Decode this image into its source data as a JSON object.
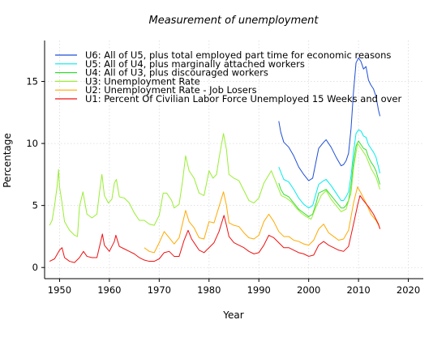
{
  "chart_data": {
    "type": "line",
    "title": "Measurement of unemployment",
    "xlabel": "Year",
    "ylabel": "Percentage",
    "xlim": [
      1947,
      2023
    ],
    "ylim": [
      -0.9,
      18.3
    ],
    "x_ticks": [
      1950,
      1960,
      1970,
      1980,
      1990,
      2000,
      2010,
      2020
    ],
    "x_tick_labels": [
      "1950",
      "1960",
      "1970",
      "1980",
      "1990",
      "2000",
      "2010",
      "2020"
    ],
    "y_ticks": [
      0,
      5,
      10,
      15
    ],
    "y_tick_labels": [
      "0",
      "5",
      "10",
      "15"
    ],
    "grid": true,
    "legend_position": "top-left",
    "series": [
      {
        "name": "U6: All of U5, plus total employed part time for economic reasons",
        "color": "#1f4fd6",
        "points": [
          [
            1994.0,
            11.8
          ],
          [
            1994.4,
            10.9
          ],
          [
            1995.0,
            10.1
          ],
          [
            1996.0,
            9.7
          ],
          [
            1997.0,
            9.0
          ],
          [
            1998.0,
            8.1
          ],
          [
            1999.0,
            7.5
          ],
          [
            2000.0,
            7.0
          ],
          [
            2000.8,
            7.2
          ],
          [
            2001.5,
            8.6
          ],
          [
            2002.0,
            9.6
          ],
          [
            2003.0,
            10.1
          ],
          [
            2003.5,
            10.3
          ],
          [
            2004.5,
            9.7
          ],
          [
            2005.5,
            8.9
          ],
          [
            2006.5,
            8.2
          ],
          [
            2007.0,
            8.3
          ],
          [
            2007.5,
            8.6
          ],
          [
            2008.0,
            9.2
          ],
          [
            2008.5,
            11.2
          ],
          [
            2009.0,
            14.2
          ],
          [
            2009.5,
            16.5
          ],
          [
            2010.0,
            16.9
          ],
          [
            2010.5,
            16.6
          ],
          [
            2011.0,
            16.0
          ],
          [
            2011.5,
            16.2
          ],
          [
            2012.0,
            15.1
          ],
          [
            2012.5,
            14.7
          ],
          [
            2013.0,
            14.4
          ],
          [
            2013.5,
            13.8
          ],
          [
            2014.0,
            12.7
          ],
          [
            2014.3,
            12.2
          ]
        ]
      },
      {
        "name": "U5: All of U4, plus marginally attached workers",
        "color": "#00ecec",
        "points": [
          [
            1994.0,
            8.1
          ],
          [
            1994.4,
            7.7
          ],
          [
            1995.0,
            7.1
          ],
          [
            1996.0,
            6.9
          ],
          [
            1997.0,
            6.3
          ],
          [
            1998.0,
            5.6
          ],
          [
            1999.0,
            5.1
          ],
          [
            2000.0,
            4.8
          ],
          [
            2000.8,
            5.0
          ],
          [
            2001.5,
            6.0
          ],
          [
            2002.0,
            6.7
          ],
          [
            2003.0,
            7.0
          ],
          [
            2003.5,
            7.1
          ],
          [
            2004.5,
            6.6
          ],
          [
            2005.5,
            6.0
          ],
          [
            2006.5,
            5.4
          ],
          [
            2007.0,
            5.4
          ],
          [
            2007.5,
            5.7
          ],
          [
            2008.0,
            6.1
          ],
          [
            2008.5,
            7.4
          ],
          [
            2009.0,
            9.3
          ],
          [
            2009.5,
            10.8
          ],
          [
            2010.0,
            11.1
          ],
          [
            2010.5,
            11.0
          ],
          [
            2011.0,
            10.6
          ],
          [
            2011.5,
            10.5
          ],
          [
            2012.0,
            9.9
          ],
          [
            2012.5,
            9.6
          ],
          [
            2013.0,
            9.3
          ],
          [
            2013.5,
            8.9
          ],
          [
            2014.0,
            8.1
          ],
          [
            2014.3,
            7.6
          ]
        ]
      },
      {
        "name": "U4: All of U3, plus discouraged workers",
        "color": "#33dd33",
        "points": [
          [
            1994.0,
            6.8
          ],
          [
            1994.4,
            6.3
          ],
          [
            1995.0,
            5.9
          ],
          [
            1996.0,
            5.7
          ],
          [
            1997.0,
            5.2
          ],
          [
            1998.0,
            4.7
          ],
          [
            1999.0,
            4.4
          ],
          [
            2000.0,
            4.1
          ],
          [
            2000.8,
            4.3
          ],
          [
            2001.5,
            5.2
          ],
          [
            2002.0,
            6.0
          ],
          [
            2003.0,
            6.2
          ],
          [
            2003.5,
            6.3
          ],
          [
            2004.5,
            5.8
          ],
          [
            2005.5,
            5.3
          ],
          [
            2006.5,
            4.8
          ],
          [
            2007.0,
            4.8
          ],
          [
            2007.5,
            5.0
          ],
          [
            2008.0,
            5.4
          ],
          [
            2008.5,
            6.6
          ],
          [
            2009.0,
            8.5
          ],
          [
            2009.5,
            9.8
          ],
          [
            2010.0,
            10.2
          ],
          [
            2010.5,
            9.9
          ],
          [
            2011.0,
            9.6
          ],
          [
            2011.5,
            9.5
          ],
          [
            2012.0,
            8.9
          ],
          [
            2012.5,
            8.5
          ],
          [
            2013.0,
            8.2
          ],
          [
            2013.5,
            7.8
          ],
          [
            2014.0,
            7.1
          ],
          [
            2014.3,
            6.7
          ]
        ]
      },
      {
        "name": "U3: Unemployment Rate",
        "color": "#99ee33",
        "points": [
          [
            1948.0,
            3.4
          ],
          [
            1948.5,
            3.8
          ],
          [
            1949.0,
            5.0
          ],
          [
            1949.5,
            6.5
          ],
          [
            1949.8,
            7.9
          ],
          [
            1950.0,
            6.5
          ],
          [
            1950.5,
            5.2
          ],
          [
            1951.0,
            3.7
          ],
          [
            1952.0,
            3.0
          ],
          [
            1953.0,
            2.6
          ],
          [
            1953.6,
            2.5
          ],
          [
            1954.0,
            4.9
          ],
          [
            1954.7,
            6.1
          ],
          [
            1955.5,
            4.3
          ],
          [
            1956.5,
            4.0
          ],
          [
            1957.5,
            4.3
          ],
          [
            1958.0,
            6.0
          ],
          [
            1958.5,
            7.5
          ],
          [
            1959.0,
            5.8
          ],
          [
            1959.8,
            5.2
          ],
          [
            1960.5,
            5.5
          ],
          [
            1961.0,
            6.8
          ],
          [
            1961.4,
            7.1
          ],
          [
            1962.0,
            5.7
          ],
          [
            1963.0,
            5.6
          ],
          [
            1964.0,
            5.2
          ],
          [
            1965.0,
            4.4
          ],
          [
            1966.0,
            3.8
          ],
          [
            1967.0,
            3.8
          ],
          [
            1968.0,
            3.5
          ],
          [
            1969.0,
            3.4
          ],
          [
            1970.0,
            4.2
          ],
          [
            1970.8,
            6.0
          ],
          [
            1971.5,
            6.0
          ],
          [
            1972.5,
            5.4
          ],
          [
            1973.0,
            4.8
          ],
          [
            1974.0,
            5.1
          ],
          [
            1974.7,
            7.0
          ],
          [
            1975.3,
            9.0
          ],
          [
            1976.0,
            7.8
          ],
          [
            1977.0,
            7.2
          ],
          [
            1978.0,
            6.0
          ],
          [
            1979.0,
            5.8
          ],
          [
            1980.0,
            7.8
          ],
          [
            1980.8,
            7.2
          ],
          [
            1981.5,
            7.5
          ],
          [
            1982.0,
            8.8
          ],
          [
            1982.9,
            10.8
          ],
          [
            1983.5,
            9.5
          ],
          [
            1984.0,
            7.5
          ],
          [
            1985.0,
            7.2
          ],
          [
            1986.0,
            7.0
          ],
          [
            1987.0,
            6.2
          ],
          [
            1988.0,
            5.4
          ],
          [
            1989.0,
            5.2
          ],
          [
            1990.0,
            5.6
          ],
          [
            1991.0,
            6.8
          ],
          [
            1992.5,
            7.8
          ],
          [
            1993.5,
            6.8
          ],
          [
            1994.5,
            5.8
          ],
          [
            1995.5,
            5.6
          ],
          [
            1996.5,
            5.3
          ],
          [
            1997.5,
            4.8
          ],
          [
            1998.5,
            4.4
          ],
          [
            1999.5,
            4.1
          ],
          [
            2000.5,
            3.9
          ],
          [
            2001.5,
            4.9
          ],
          [
            2002.5,
            5.8
          ],
          [
            2003.5,
            6.2
          ],
          [
            2004.5,
            5.5
          ],
          [
            2005.5,
            5.0
          ],
          [
            2006.5,
            4.5
          ],
          [
            2007.5,
            4.7
          ],
          [
            2008.5,
            6.0
          ],
          [
            2009.0,
            8.0
          ],
          [
            2009.8,
            10.0
          ],
          [
            2010.5,
            9.6
          ],
          [
            2011.5,
            9.0
          ],
          [
            2012.5,
            8.0
          ],
          [
            2013.5,
            7.3
          ],
          [
            2014.3,
            6.3
          ]
        ]
      },
      {
        "name": "U2: Unemployment Rate - Job Losers",
        "color": "#ffaa00",
        "points": [
          [
            1967.0,
            1.6
          ],
          [
            1968.0,
            1.3
          ],
          [
            1969.0,
            1.2
          ],
          [
            1970.0,
            2.0
          ],
          [
            1971.0,
            2.9
          ],
          [
            1972.0,
            2.4
          ],
          [
            1973.0,
            1.9
          ],
          [
            1974.0,
            2.4
          ],
          [
            1975.3,
            4.6
          ],
          [
            1976.0,
            3.7
          ],
          [
            1977.0,
            3.2
          ],
          [
            1978.0,
            2.4
          ],
          [
            1979.0,
            2.3
          ],
          [
            1980.0,
            3.7
          ],
          [
            1981.0,
            3.6
          ],
          [
            1982.0,
            4.9
          ],
          [
            1982.9,
            6.1
          ],
          [
            1983.5,
            5.0
          ],
          [
            1984.0,
            3.6
          ],
          [
            1985.0,
            3.4
          ],
          [
            1986.0,
            3.3
          ],
          [
            1987.0,
            2.8
          ],
          [
            1988.0,
            2.4
          ],
          [
            1989.0,
            2.3
          ],
          [
            1990.0,
            2.6
          ],
          [
            1991.0,
            3.7
          ],
          [
            1992.0,
            4.3
          ],
          [
            1993.0,
            3.7
          ],
          [
            1994.0,
            2.9
          ],
          [
            1995.0,
            2.5
          ],
          [
            1996.0,
            2.5
          ],
          [
            1997.0,
            2.2
          ],
          [
            1998.0,
            2.1
          ],
          [
            1999.0,
            1.9
          ],
          [
            2000.0,
            1.8
          ],
          [
            2001.0,
            2.2
          ],
          [
            2002.0,
            3.1
          ],
          [
            2003.0,
            3.5
          ],
          [
            2004.0,
            2.8
          ],
          [
            2005.0,
            2.5
          ],
          [
            2006.0,
            2.2
          ],
          [
            2007.0,
            2.3
          ],
          [
            2008.0,
            3.0
          ],
          [
            2009.0,
            5.2
          ],
          [
            2009.8,
            6.5
          ],
          [
            2010.5,
            6.0
          ],
          [
            2011.5,
            5.2
          ],
          [
            2012.5,
            4.3
          ],
          [
            2013.5,
            3.8
          ],
          [
            2014.3,
            3.2
          ]
        ]
      },
      {
        "name": "U1: Percent Of Civilian Labor Force Unemployed 15 Weeks and over",
        "color": "#ee1111",
        "points": [
          [
            1948.0,
            0.5
          ],
          [
            1949.0,
            0.7
          ],
          [
            1950.0,
            1.4
          ],
          [
            1950.5,
            1.6
          ],
          [
            1951.0,
            0.8
          ],
          [
            1952.0,
            0.5
          ],
          [
            1953.0,
            0.4
          ],
          [
            1954.0,
            0.8
          ],
          [
            1954.8,
            1.3
          ],
          [
            1955.5,
            0.9
          ],
          [
            1956.5,
            0.8
          ],
          [
            1957.5,
            0.8
          ],
          [
            1958.2,
            2.0
          ],
          [
            1958.6,
            2.7
          ],
          [
            1959.0,
            1.8
          ],
          [
            1960.0,
            1.3
          ],
          [
            1961.0,
            2.1
          ],
          [
            1961.3,
            2.6
          ],
          [
            1962.0,
            1.7
          ],
          [
            1963.0,
            1.5
          ],
          [
            1964.0,
            1.3
          ],
          [
            1965.0,
            1.1
          ],
          [
            1966.0,
            0.8
          ],
          [
            1967.0,
            0.6
          ],
          [
            1968.0,
            0.5
          ],
          [
            1969.0,
            0.5
          ],
          [
            1970.0,
            0.7
          ],
          [
            1971.0,
            1.2
          ],
          [
            1972.0,
            1.3
          ],
          [
            1973.0,
            0.9
          ],
          [
            1974.0,
            0.9
          ],
          [
            1975.0,
            2.2
          ],
          [
            1975.8,
            3.0
          ],
          [
            1976.5,
            2.3
          ],
          [
            1977.0,
            2.0
          ],
          [
            1978.0,
            1.4
          ],
          [
            1979.0,
            1.2
          ],
          [
            1980.0,
            1.6
          ],
          [
            1981.0,
            2.0
          ],
          [
            1982.0,
            2.9
          ],
          [
            1983.0,
            4.2
          ],
          [
            1983.5,
            3.4
          ],
          [
            1984.0,
            2.5
          ],
          [
            1985.0,
            2.0
          ],
          [
            1986.0,
            1.8
          ],
          [
            1987.0,
            1.6
          ],
          [
            1988.0,
            1.3
          ],
          [
            1989.0,
            1.1
          ],
          [
            1990.0,
            1.2
          ],
          [
            1991.0,
            1.8
          ],
          [
            1992.0,
            2.6
          ],
          [
            1993.0,
            2.4
          ],
          [
            1994.0,
            2.0
          ],
          [
            1995.0,
            1.6
          ],
          [
            1996.0,
            1.6
          ],
          [
            1997.0,
            1.4
          ],
          [
            1998.0,
            1.2
          ],
          [
            1999.0,
            1.1
          ],
          [
            2000.0,
            0.9
          ],
          [
            2001.0,
            1.0
          ],
          [
            2002.0,
            1.8
          ],
          [
            2003.0,
            2.1
          ],
          [
            2004.0,
            1.8
          ],
          [
            2005.0,
            1.6
          ],
          [
            2006.0,
            1.4
          ],
          [
            2007.0,
            1.3
          ],
          [
            2008.0,
            1.7
          ],
          [
            2009.0,
            3.5
          ],
          [
            2009.8,
            5.0
          ],
          [
            2010.3,
            5.8
          ],
          [
            2011.0,
            5.4
          ],
          [
            2012.0,
            4.9
          ],
          [
            2013.0,
            4.3
          ],
          [
            2014.0,
            3.5
          ],
          [
            2014.3,
            3.1
          ]
        ]
      }
    ]
  }
}
